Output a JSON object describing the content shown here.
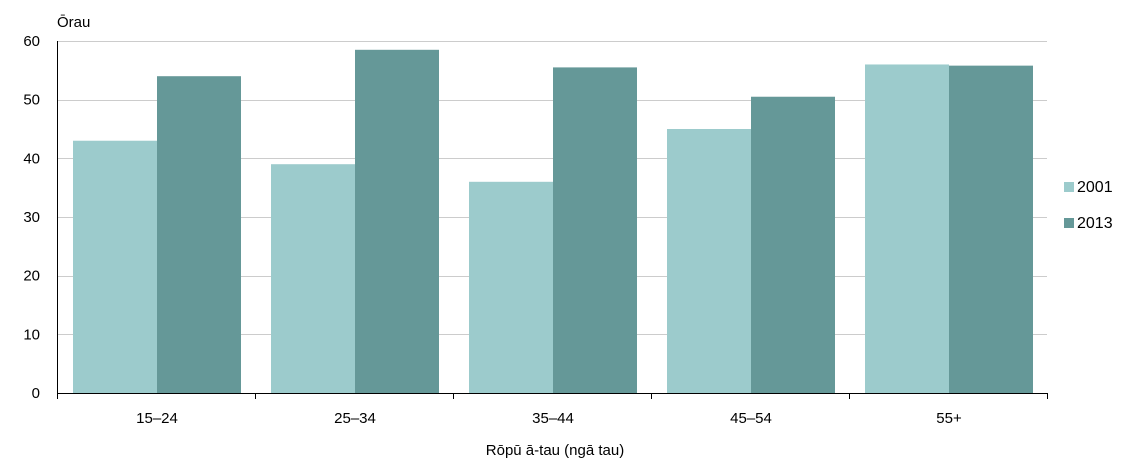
{
  "chart_data": {
    "type": "bar",
    "title": "",
    "ylabel": "Ōrau",
    "xlabel": "Rōpū ā-tau (ngā tau)",
    "categories": [
      "15–24",
      "25–34",
      "35–44",
      "45–54",
      "55+"
    ],
    "series": [
      {
        "name": "2001",
        "values": [
          43,
          39,
          36,
          45,
          56
        ],
        "color": "#9ccbcc"
      },
      {
        "name": "2013",
        "values": [
          54,
          58.5,
          55.5,
          50.5,
          55.8
        ],
        "color": "#659898"
      }
    ],
    "ylim": [
      0,
      60
    ],
    "yticks": [
      0,
      10,
      20,
      30,
      40,
      50,
      60
    ],
    "grid": true,
    "legend_position": "right",
    "gridline_color": "#cccccc",
    "axis_color": "#000000"
  }
}
